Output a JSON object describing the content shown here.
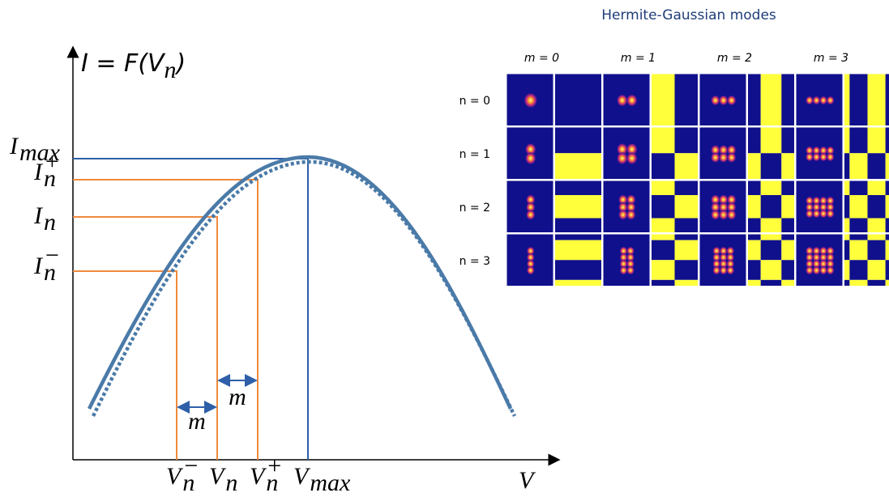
{
  "plot": {
    "y_axis_label": {
      "text": "I = F(V",
      "sub": "n",
      "end": ")"
    },
    "x_axis_label": "V",
    "y_labels": [
      {
        "base": "I",
        "sub": "max"
      },
      {
        "base": "I",
        "sup": "+",
        "sub": "n"
      },
      {
        "base": "I",
        "sub": "n"
      },
      {
        "base": "I",
        "sup": "−",
        "sub": "n"
      }
    ],
    "x_labels": [
      {
        "base": "V",
        "sup": "−",
        "sub": "n"
      },
      {
        "base": "V",
        "sub": "n"
      },
      {
        "base": "V",
        "sup": "+",
        "sub": "n"
      },
      {
        "base": "V",
        "sub": "max"
      }
    ],
    "spacing_labels": [
      "m",
      "m"
    ]
  },
  "modes": {
    "title": "Hermite-Gaussian modes",
    "columns": [
      "m = 0",
      "m = 1",
      "m = 2",
      "m = 3"
    ],
    "rows": [
      "n = 0",
      "n = 1",
      "n = 2",
      "n = 3"
    ]
  }
}
